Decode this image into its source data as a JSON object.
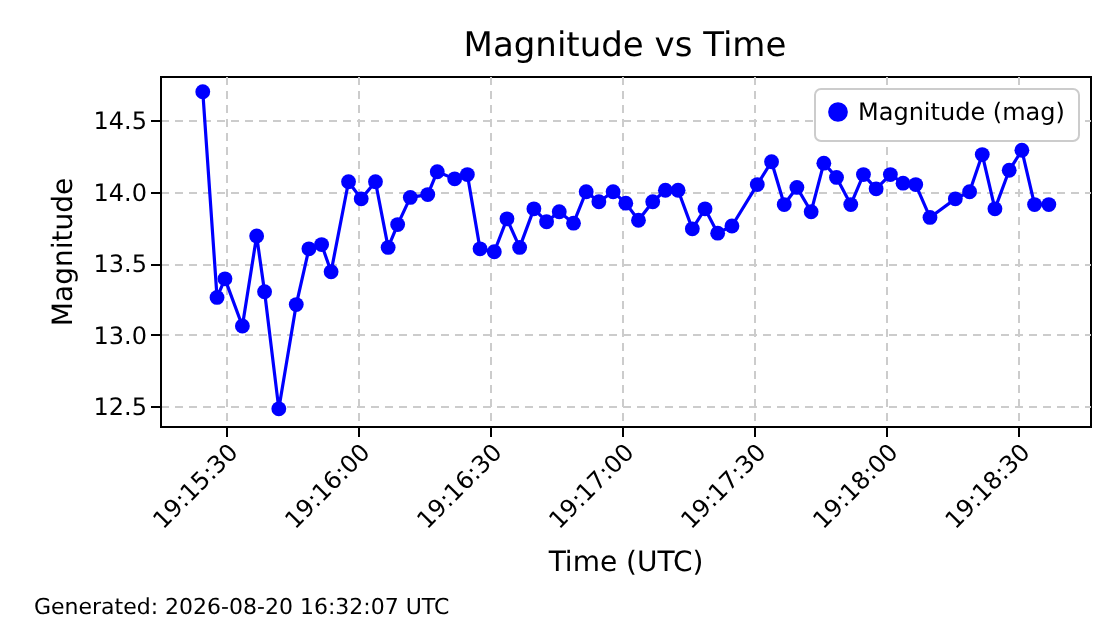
{
  "chart_data": {
    "type": "line",
    "title": "Magnitude vs Time",
    "xlabel": "Time (UTC)",
    "ylabel": "Magnitude",
    "annotations": [
      "Generated: 2026-08-20 16:32:07 UTC"
    ],
    "x": [
      19.2569,
      19.2578,
      19.2583,
      19.2594,
      19.2603,
      19.2608,
      19.2617,
      19.2628,
      19.2636,
      19.2644,
      19.265,
      19.2661,
      19.2669,
      19.2678,
      19.2686,
      19.2692,
      19.27,
      19.2711,
      19.2717,
      19.2728,
      19.2736,
      19.2744,
      19.2753,
      19.2761,
      19.2769,
      19.2778,
      19.2786,
      19.2794,
      19.2803,
      19.2811,
      19.2819,
      19.2828,
      19.2836,
      19.2844,
      19.2853,
      19.2861,
      19.2869,
      19.2878,
      19.2886,
      19.2894,
      19.2903,
      19.2919,
      19.2928,
      19.2936,
      19.2944,
      19.2953,
      19.2961,
      19.2969,
      19.2978,
      19.2986,
      19.2994,
      19.3003,
      19.3011,
      19.3019,
      19.3028,
      19.3044,
      19.3053,
      19.3061,
      19.3069,
      19.3078,
      19.3086,
      19.3094,
      19.3103
    ],
    "series": [
      {
        "name": "Magnitude (mag)",
        "color": "#0000ff",
        "values": [
          14.7,
          13.26,
          13.39,
          13.06,
          13.69,
          13.3,
          12.48,
          13.21,
          13.6,
          13.63,
          13.44,
          14.07,
          13.95,
          14.07,
          13.61,
          13.77,
          13.96,
          13.98,
          14.14,
          14.09,
          14.12,
          13.6,
          13.58,
          13.81,
          13.61,
          13.88,
          13.79,
          13.86,
          13.78,
          14.0,
          13.93,
          14.0,
          13.92,
          13.8,
          13.93,
          14.01,
          14.01,
          13.74,
          13.88,
          13.71,
          13.76,
          14.05,
          14.21,
          13.91,
          14.03,
          13.86,
          14.2,
          14.1,
          13.91,
          14.12,
          14.02,
          14.12,
          14.06,
          14.05,
          13.82,
          13.95,
          14.0,
          14.26,
          13.88,
          14.15,
          14.29,
          13.91,
          13.91
        ]
      }
    ],
    "xlim": [
      19.2542,
      19.3129
    ],
    "xticks": [
      {
        "value": 19.258333,
        "label": "19:15:30"
      },
      {
        "value": 19.266667,
        "label": "19:16:00"
      },
      {
        "value": 19.275,
        "label": "19:16:30"
      },
      {
        "value": 19.283333,
        "label": "19:17:00"
      },
      {
        "value": 19.291667,
        "label": "19:17:30"
      },
      {
        "value": 19.3,
        "label": "19:18:00"
      },
      {
        "value": 19.308333,
        "label": "19:18:30"
      }
    ],
    "ylim": [
      12.36,
      14.81
    ],
    "yticks": [
      12.5,
      {
        "value": 13,
        "label": "13.0"
      },
      13.5,
      {
        "value": 14,
        "label": "14.0"
      },
      14.5
    ],
    "grid": true,
    "legend": "top right",
    "marker": "circle",
    "line_style": "solid"
  }
}
